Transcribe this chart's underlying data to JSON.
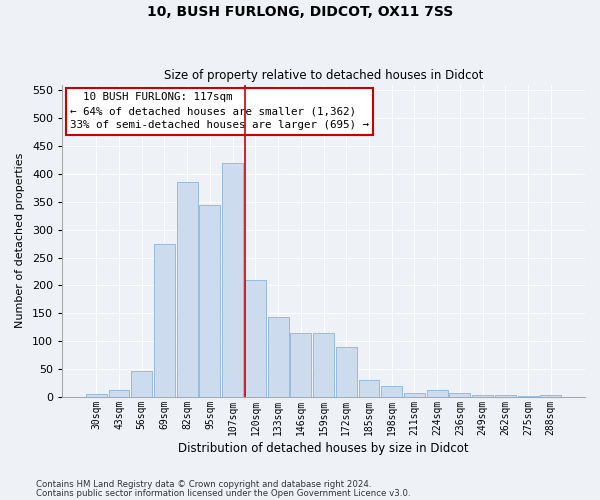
{
  "title1": "10, BUSH FURLONG, DIDCOT, OX11 7SS",
  "title2": "Size of property relative to detached houses in Didcot",
  "xlabel": "Distribution of detached houses by size in Didcot",
  "ylabel": "Number of detached properties",
  "footnote1": "Contains HM Land Registry data © Crown copyright and database right 2024.",
  "footnote2": "Contains public sector information licensed under the Open Government Licence v3.0.",
  "categories": [
    "30sqm",
    "43sqm",
    "56sqm",
    "69sqm",
    "82sqm",
    "95sqm",
    "107sqm",
    "120sqm",
    "133sqm",
    "146sqm",
    "159sqm",
    "172sqm",
    "185sqm",
    "198sqm",
    "211sqm",
    "224sqm",
    "236sqm",
    "249sqm",
    "262sqm",
    "275sqm",
    "288sqm"
  ],
  "values": [
    5,
    12,
    47,
    275,
    385,
    345,
    420,
    210,
    143,
    115,
    115,
    90,
    30,
    20,
    8,
    12,
    8,
    4,
    4,
    2,
    4
  ],
  "bar_color": "#ccdcee",
  "bar_edge_color": "#8ab4d8",
  "vline_color": "#cc0000",
  "vline_index": 7,
  "annotation_text": "  10 BUSH FURLONG: 117sqm  \n← 64% of detached houses are smaller (1,362)\n33% of semi-detached houses are larger (695) →",
  "annotation_box_color": "#ffffff",
  "annotation_box_edge_color": "#cc0000",
  "background_color": "#eef2f7",
  "plot_bg_color": "#eef2f7",
  "ylim": [
    0,
    560
  ],
  "yticks": [
    0,
    50,
    100,
    150,
    200,
    250,
    300,
    350,
    400,
    450,
    500,
    550
  ],
  "title1_fontsize": 10,
  "title2_fontsize": 8.5,
  "xlabel_fontsize": 8.5,
  "ylabel_fontsize": 8,
  "xtick_fontsize": 7,
  "ytick_fontsize": 8,
  "footnote_fontsize": 6.2
}
